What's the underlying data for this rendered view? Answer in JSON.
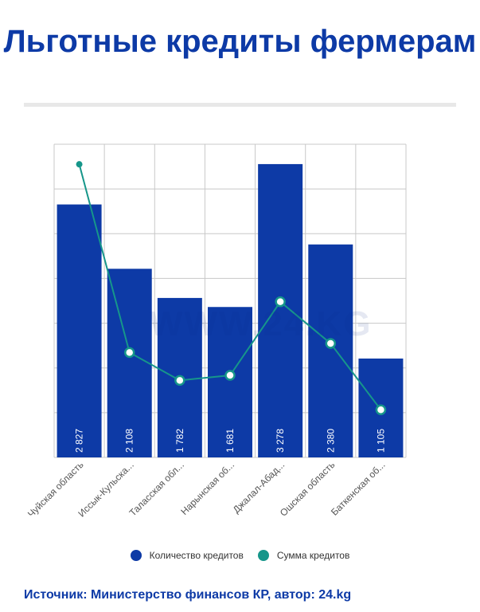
{
  "title": "Льготные кредиты фермерам",
  "watermark": "WWW.24.KG",
  "source": "Источник: Министерство финансов КР, автор: 24.kg",
  "colors": {
    "bar": "#0d3aa6",
    "line": "#16968a",
    "title": "#0d3aa6",
    "grid": "#c8c8c8"
  },
  "chart_data": {
    "type": "bar",
    "categories": [
      "Чуйская область",
      "Иссык-Кульска...",
      "Таласская обл...",
      "Нарынская об...",
      "Джалал-Абад...",
      "Ошская область",
      "Баткенская об..."
    ],
    "series": [
      {
        "name": "Количество кредитов",
        "type": "bar",
        "values": [
          2827,
          2108,
          1782,
          1681,
          3278,
          2380,
          1105
        ],
        "labels": [
          "2 827",
          "2 108",
          "1 782",
          "1 681",
          "3 278",
          "2 380",
          "1 105"
        ]
      },
      {
        "name": "Сумма кредитов",
        "type": "line",
        "relative_values": [
          0.936,
          0.335,
          0.246,
          0.262,
          0.497,
          0.364,
          0.152
        ]
      }
    ],
    "ylim": [
      0,
      3500
    ],
    "grid": true,
    "legend": "bottom"
  }
}
